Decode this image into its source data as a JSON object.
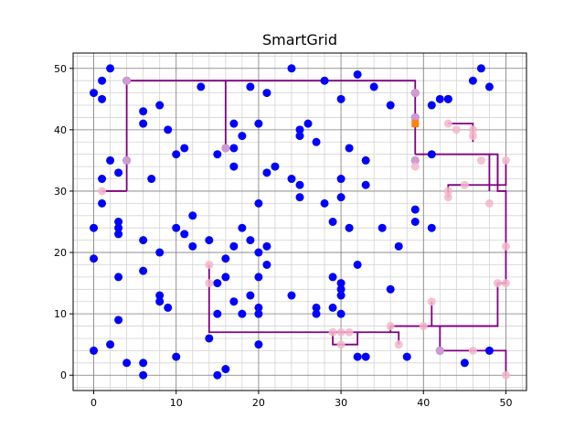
{
  "chart_data": {
    "type": "scatter",
    "title": "SmartGrid",
    "xlabel": "",
    "ylabel": "",
    "xlim": [
      -2.5,
      52.5
    ],
    "ylim": [
      -2.5,
      52.5
    ],
    "xticks": [
      0,
      10,
      20,
      30,
      40,
      50
    ],
    "yticks": [
      0,
      10,
      20,
      30,
      40,
      50
    ],
    "grid": true,
    "minor_grid_step": 2,
    "colors": {
      "houses": "#0000ff",
      "batteries": "#ff7f0e",
      "cables": "#800080",
      "connected_houses": "#f4b6c8",
      "major_grid": "#808080",
      "minor_grid": "#d3d3d3"
    },
    "houses": [
      [
        0,
        46
      ],
      [
        1,
        45
      ],
      [
        1,
        48
      ],
      [
        2,
        50
      ],
      [
        4,
        48
      ],
      [
        6,
        43
      ],
      [
        6,
        41
      ],
      [
        8,
        44
      ],
      [
        9,
        40
      ],
      [
        13,
        47
      ],
      [
        10,
        36
      ],
      [
        11,
        37
      ],
      [
        15,
        36
      ],
      [
        16,
        37
      ],
      [
        17,
        41
      ],
      [
        17,
        37
      ],
      [
        18,
        39
      ],
      [
        19,
        47
      ],
      [
        20,
        41
      ],
      [
        21,
        46
      ],
      [
        24,
        50
      ],
      [
        25,
        40
      ],
      [
        25,
        39
      ],
      [
        26,
        41
      ],
      [
        27,
        38
      ],
      [
        28,
        48
      ],
      [
        30,
        45
      ],
      [
        32,
        49
      ],
      [
        34,
        47
      ],
      [
        36,
        44
      ],
      [
        39,
        46
      ],
      [
        39,
        42
      ],
      [
        41,
        44
      ],
      [
        42,
        45
      ],
      [
        43,
        45
      ],
      [
        47,
        50
      ],
      [
        46,
        48
      ],
      [
        48,
        47
      ],
      [
        41,
        36
      ],
      [
        39,
        35
      ],
      [
        2,
        35
      ],
      [
        4,
        35
      ],
      [
        3,
        33
      ],
      [
        1,
        32
      ],
      [
        1,
        28
      ],
      [
        7,
        32
      ],
      [
        17,
        34
      ],
      [
        21,
        33
      ],
      [
        22,
        34
      ],
      [
        24,
        32
      ],
      [
        25,
        31
      ],
      [
        25,
        29
      ],
      [
        28,
        28
      ],
      [
        30,
        32
      ],
      [
        30,
        29
      ],
      [
        31,
        37
      ],
      [
        33,
        35
      ],
      [
        33,
        31
      ],
      [
        29,
        25
      ],
      [
        31,
        24
      ],
      [
        35,
        24
      ],
      [
        37,
        21
      ],
      [
        39,
        27
      ],
      [
        39,
        25
      ],
      [
        41,
        24
      ],
      [
        0,
        24
      ],
      [
        3,
        25
      ],
      [
        3,
        24
      ],
      [
        3,
        23
      ],
      [
        6,
        22
      ],
      [
        8,
        20
      ],
      [
        10,
        24
      ],
      [
        11,
        23
      ],
      [
        12,
        26
      ],
      [
        12,
        21
      ],
      [
        14,
        22
      ],
      [
        16,
        19
      ],
      [
        17,
        21
      ],
      [
        18,
        24
      ],
      [
        19,
        22
      ],
      [
        20,
        28
      ],
      [
        20,
        20
      ],
      [
        21,
        21
      ],
      [
        21,
        18
      ],
      [
        0,
        19
      ],
      [
        3,
        16
      ],
      [
        6,
        17
      ],
      [
        8,
        13
      ],
      [
        8,
        12
      ],
      [
        9,
        11
      ],
      [
        3,
        9
      ],
      [
        15,
        15
      ],
      [
        15,
        10
      ],
      [
        16,
        16
      ],
      [
        17,
        12
      ],
      [
        18,
        10
      ],
      [
        19,
        13
      ],
      [
        20,
        16
      ],
      [
        20,
        11
      ],
      [
        20,
        10
      ],
      [
        24,
        13
      ],
      [
        27,
        11
      ],
      [
        27,
        10
      ],
      [
        29,
        16
      ],
      [
        29,
        11
      ],
      [
        30,
        15
      ],
      [
        30,
        14
      ],
      [
        30,
        13
      ],
      [
        32,
        18
      ],
      [
        36,
        14
      ],
      [
        0,
        4
      ],
      [
        2,
        5
      ],
      [
        4,
        2
      ],
      [
        6,
        2
      ],
      [
        6,
        0
      ],
      [
        10,
        3
      ],
      [
        14,
        6
      ],
      [
        15,
        0
      ],
      [
        16,
        1
      ],
      [
        20,
        5
      ],
      [
        32,
        3
      ],
      [
        33,
        3
      ],
      [
        38,
        3
      ],
      [
        42,
        4
      ],
      [
        45,
        2
      ],
      [
        48,
        4
      ],
      [
        43,
        45
      ],
      [
        30,
        10
      ]
    ],
    "connected_houses": [
      [
        4,
        48
      ],
      [
        4,
        35
      ],
      [
        1,
        30
      ],
      [
        16,
        37
      ],
      [
        14,
        18
      ],
      [
        14,
        15
      ],
      [
        39,
        46
      ],
      [
        39,
        42
      ],
      [
        39,
        35
      ],
      [
        39,
        34
      ],
      [
        43,
        41
      ],
      [
        44,
        40
      ],
      [
        46,
        40
      ],
      [
        46,
        39
      ],
      [
        47,
        35
      ],
      [
        50,
        35
      ],
      [
        45,
        31
      ],
      [
        43,
        30
      ],
      [
        43,
        29
      ],
      [
        48,
        28
      ],
      [
        50,
        21
      ],
      [
        49,
        15
      ],
      [
        50,
        15
      ],
      [
        41,
        12
      ],
      [
        40,
        8
      ],
      [
        36,
        8
      ],
      [
        37,
        5
      ],
      [
        42,
        4
      ],
      [
        46,
        4
      ],
      [
        50,
        0
      ],
      [
        29,
        7
      ],
      [
        30,
        7
      ],
      [
        31,
        7
      ],
      [
        30,
        5
      ]
    ],
    "batteries": [
      [
        39,
        41
      ]
    ],
    "cables": [
      [
        [
          4,
          30
        ],
        [
          4,
          48
        ],
        [
          39,
          48
        ],
        [
          39,
          36
        ]
      ],
      [
        [
          1,
          30
        ],
        [
          4,
          30
        ]
      ],
      [
        [
          16,
          48
        ],
        [
          16,
          37
        ]
      ],
      [
        [
          39,
          36
        ],
        [
          48,
          36
        ],
        [
          48,
          30
        ]
      ],
      [
        [
          48,
          36
        ],
        [
          49,
          36
        ],
        [
          49,
          31
        ],
        [
          50,
          31
        ],
        [
          50,
          35
        ]
      ],
      [
        [
          43,
          31
        ],
        [
          45,
          31
        ]
      ],
      [
        [
          43,
          29
        ],
        [
          43,
          31
        ],
        [
          49,
          31
        ]
      ],
      [
        [
          43,
          41
        ],
        [
          46,
          41
        ],
        [
          46,
          38
        ]
      ],
      [
        [
          49,
          36
        ],
        [
          49,
          30
        ],
        [
          50,
          30
        ],
        [
          50,
          15
        ],
        [
          49,
          15
        ],
        [
          49,
          8
        ],
        [
          42,
          8
        ],
        [
          42,
          4
        ],
        [
          50,
          4
        ],
        [
          50,
          0
        ]
      ],
      [
        [
          41,
          8
        ],
        [
          41,
          12
        ]
      ],
      [
        [
          49,
          8
        ],
        [
          36,
          8
        ],
        [
          36,
          7
        ],
        [
          37,
          7
        ],
        [
          37,
          5
        ]
      ],
      [
        [
          14,
          18
        ],
        [
          14,
          7
        ],
        [
          32,
          7
        ],
        [
          32,
          5
        ],
        [
          29,
          5
        ],
        [
          29,
          7
        ]
      ],
      [
        [
          32,
          7
        ],
        [
          36,
          7
        ]
      ]
    ]
  }
}
